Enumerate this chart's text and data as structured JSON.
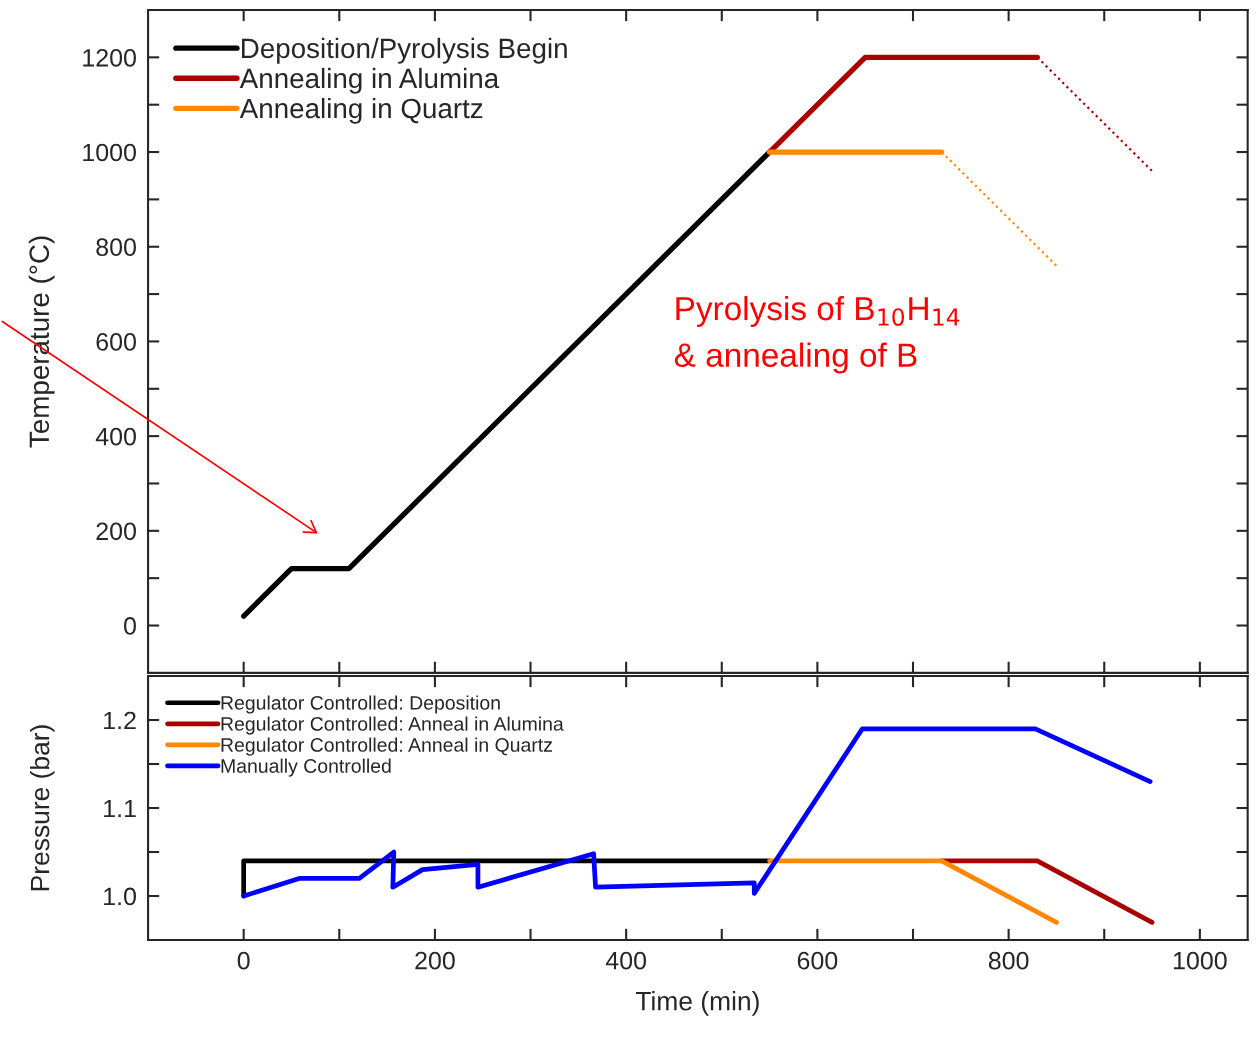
{
  "chart_data": [
    {
      "type": "line",
      "ylabel": "Temperature (°C)",
      "xlim": [
        -100,
        1050
      ],
      "ylim": [
        -100,
        1300
      ],
      "xticks": [
        0,
        {
          "value": 100,
          "label": null
        },
        200,
        {
          "value": 300,
          "label": null
        },
        400,
        {
          "value": 500,
          "label": null
        },
        600,
        {
          "value": 700,
          "label": null
        },
        800,
        {
          "value": 900,
          "label": null
        },
        1000
      ],
      "yticks": [
        0,
        {
          "value": 100,
          "label": null
        },
        200,
        {
          "value": 300,
          "label": null
        },
        400,
        {
          "value": 500,
          "label": null
        },
        600,
        {
          "value": 700,
          "label": null
        },
        800,
        {
          "value": 900,
          "label": null
        },
        1000,
        {
          "value": 1100,
          "label": null
        },
        1200
      ],
      "tick_labels": "y",
      "legend": "top left",
      "grid": false,
      "annotations": [
        "Pyrolysis of B$_{10}$H$_{14}$",
        "& annealing of B"
      ],
      "series": [
        {
          "name": "Deposition/Pyrolysis Begin",
          "color": "#000000",
          "x": [
            0,
            50,
            110,
            550
          ],
          "values": [
            20,
            120,
            120,
            1000
          ]
        },
        {
          "name": "Annealing in Alumina",
          "color": "#aa0000",
          "x": [
            550,
            650,
            830
          ],
          "values": [
            1000,
            1200,
            1200
          ]
        },
        {
          "name": "Annealing in Quartz",
          "color": "#ff8800",
          "x": [
            550,
            730
          ],
          "values": [
            1000,
            1000
          ]
        },
        {
          "color": "#aa0000",
          "line_style": "dotted",
          "x": [
            830,
            950
          ],
          "values": [
            1200,
            960
          ]
        },
        {
          "color": "#ff8800",
          "line_style": "dotted",
          "x": [
            730,
            850
          ],
          "values": [
            1000,
            760
          ]
        }
      ]
    },
    {
      "type": "line",
      "xlabel": "Time (min)",
      "ylabel": "Pressure (bar)",
      "xlim": [
        -100,
        1050
      ],
      "ylim": [
        0.95,
        1.25
      ],
      "xticks": [
        0,
        {
          "value": 100,
          "label": null
        },
        200,
        {
          "value": 300,
          "label": null
        },
        400,
        {
          "value": 500,
          "label": null
        },
        600,
        {
          "value": 700,
          "label": null
        },
        800,
        {
          "value": 900,
          "label": null
        },
        1000
      ],
      "yticks": [
        {
          "value": 1.0,
          "label": "1.0"
        },
        {
          "value": 1.05,
          "label": null
        },
        1.1,
        {
          "value": 1.15,
          "label": null
        },
        1.2
      ],
      "legend": "top left",
      "grid": false,
      "series": [
        {
          "name": "Regulator Controlled: Deposition",
          "color": "#000000",
          "x": [
            0,
            0,
            550
          ],
          "values": [
            1.0,
            1.04,
            1.04
          ]
        },
        {
          "name": "Regulator Controlled: Anneal in Alumina",
          "color": "#aa0000",
          "x": [
            730,
            830,
            950
          ],
          "values": [
            1.04,
            1.04,
            0.97
          ]
        },
        {
          "name": "Regulator Controlled: Anneal in Quartz",
          "color": "#ff8800",
          "x": [
            550,
            730,
            850
          ],
          "values": [
            1.04,
            1.04,
            0.97
          ]
        },
        {
          "name": "Manually Controlled",
          "color": "#0000ff",
          "x": [
            0,
            58,
            121,
            157,
            156,
            187,
            245,
            245,
            366,
            368,
            534,
            534,
            647,
            828,
            948
          ],
          "values": [
            1.0,
            1.02,
            1.02,
            1.05,
            1.01,
            1.03,
            1.036,
            1.01,
            1.048,
            1.01,
            1.015,
            1.003,
            1.19,
            1.19,
            1.13
          ]
        }
      ]
    }
  ]
}
